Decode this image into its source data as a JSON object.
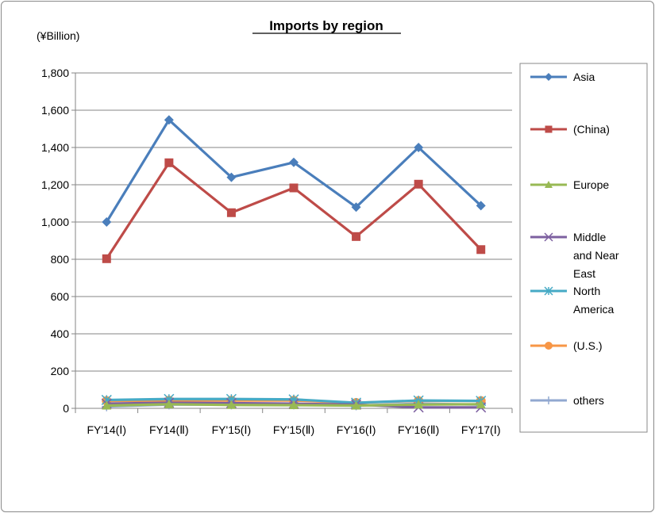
{
  "chart_data": {
    "type": "line",
    "title": "Imports by region",
    "unit_label": "(¥Billion)",
    "xlabel": "",
    "ylabel": "",
    "ylim": [
      0,
      1800
    ],
    "yticks": [
      0,
      200,
      400,
      600,
      800,
      1000,
      1200,
      1400,
      1600,
      1800
    ],
    "ytick_labels": [
      "0",
      "200",
      "400",
      "600",
      "800",
      "1,000",
      "1,200",
      "1,400",
      "1,600",
      "1,800"
    ],
    "categories": [
      "FY'14(Ⅰ)",
      "FY14(Ⅱ)",
      "FY'15(Ⅰ)",
      "FY'15(Ⅱ)",
      "FY'16(Ⅰ)",
      "FY'16(Ⅱ)",
      "FY'17(Ⅰ)"
    ],
    "grid": "horizontal",
    "legend_position": "right",
    "series": [
      {
        "name": "Asia",
        "color": "#4a7ebb",
        "marker": "diamond",
        "values": [
          1000,
          1548,
          1240,
          1320,
          1080,
          1400,
          1088
        ]
      },
      {
        "name": "(China)",
        "color": "#be4b48",
        "marker": "square",
        "values": [
          803,
          1318,
          1050,
          1183,
          922,
          1203,
          852
        ]
      },
      {
        "name": "Europe",
        "color": "#98b954",
        "marker": "triangle",
        "values": [
          15,
          22,
          18,
          17,
          15,
          20,
          22
        ]
      },
      {
        "name_lines": [
          "Middle",
          "and Near",
          "East"
        ],
        "name": "Middle and Near East",
        "color": "#7d60a0",
        "marker": "x",
        "values": [
          25,
          30,
          28,
          25,
          20,
          5,
          5
        ]
      },
      {
        "name_lines": [
          "North",
          "America"
        ],
        "name": "North America",
        "color": "#46aac5",
        "marker": "star",
        "values": [
          45,
          50,
          50,
          48,
          30,
          42,
          40
        ]
      },
      {
        "name": "(U.S.)",
        "color": "#f79646",
        "marker": "circle",
        "values": [
          40,
          42,
          42,
          42,
          30,
          40,
          40
        ]
      },
      {
        "name": "others",
        "color": "#91a8d0",
        "marker": "plus",
        "values": [
          10,
          20,
          20,
          20,
          15,
          25,
          20
        ]
      }
    ]
  }
}
